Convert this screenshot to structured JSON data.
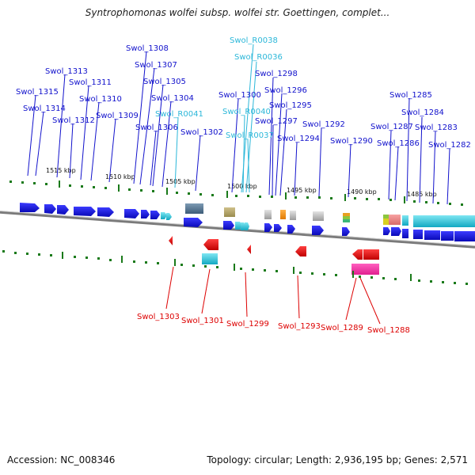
{
  "title": "Syntrophomonas wolfei subsp. wolfei str. Goettingen, complet...",
  "footer": {
    "accession": "Accession: NC_008346",
    "topology": "Topology: circular; Length: 2,936,195 bp; Genes: 2,571"
  },
  "colors": {
    "protein_label": "#1111cc",
    "rna_label": "#2bb7d9",
    "reverse_label": "#dd0000",
    "forward_gene": "#1a1ae6",
    "reverse_gene": "#e61a1a",
    "backbone": "#808080"
  },
  "ticks": [
    "1515 kbp",
    "1510 kbp",
    "1505 kbp",
    "1500 kbp",
    "1495 kbp",
    "1490 kbp",
    "1485 kbp"
  ],
  "labels_top": [
    "Swol_1315",
    "Swol_1314",
    "Swol_1313",
    "Swol_1312",
    "Swol_1311",
    "Swol_1310",
    "Swol_1309",
    "Swol_1308",
    "Swol_1307",
    "Swol_1306",
    "Swol_1305",
    "Swol_1304",
    "Swol_R0041",
    "Swol_1302",
    "Swol_R0038",
    "Swol_R0036",
    "Swol_1300",
    "Swol_R0040",
    "Swol_R0037",
    "Swol_1298",
    "Swol_1297",
    "Swol_1296",
    "Swol_1295",
    "Swol_1294",
    "Swol_1292",
    "Swol_1290",
    "Swol_1287",
    "Swol_1286",
    "Swol_1285",
    "Swol_1284",
    "Swol_1283",
    "Swol_1282"
  ],
  "labels_bottom": [
    "Swol_1303",
    "Swol_1301",
    "Swol_1299",
    "Swol_1293",
    "Swol_1289",
    "Swol_1288"
  ]
}
